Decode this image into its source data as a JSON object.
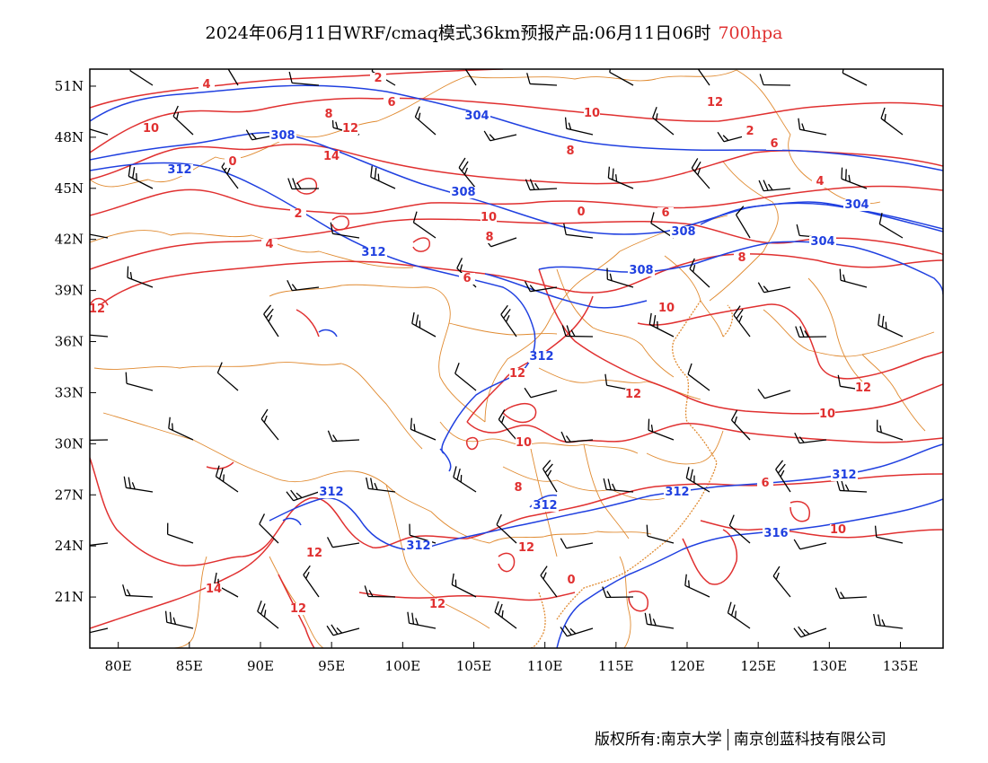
{
  "title": {
    "main": "2024年06月11日WRF/cmaq模式36km预报产品:06月11日06时",
    "level": "700hpa",
    "level_color": "#e03030"
  },
  "axes": {
    "lon_ticks": [
      "80E",
      "85E",
      "90E",
      "95E",
      "100E",
      "105E",
      "110E",
      "115E",
      "120E",
      "125E",
      "130E",
      "135E"
    ],
    "lat_ticks": [
      "51N",
      "48N",
      "45N",
      "42N",
      "39N",
      "36N",
      "33N",
      "30N",
      "27N",
      "24N",
      "21N"
    ],
    "lon_values": [
      80,
      85,
      90,
      95,
      100,
      105,
      110,
      115,
      120,
      125,
      130,
      135
    ],
    "lat_values": [
      51,
      48,
      45,
      42,
      39,
      36,
      33,
      30,
      27,
      24,
      21
    ],
    "lon_range": [
      78,
      138
    ],
    "lat_range": [
      18,
      52
    ]
  },
  "colors": {
    "temperature": "#e03030",
    "geopotential": "#2040e0",
    "boundary": "#e08a30",
    "wind": "#000000"
  },
  "temperature_labels": [
    "2",
    "4",
    "6",
    "8",
    "10",
    "12",
    "14",
    "0",
    "2",
    "4",
    "6",
    "8",
    "10",
    "12",
    "10",
    "8",
    "6",
    "2",
    "4",
    "0",
    "6",
    "8",
    "10",
    "12",
    "12",
    "10",
    "12",
    "10",
    "8",
    "6",
    "10",
    "12",
    "14",
    "12",
    "12",
    "0",
    "12",
    "12"
  ],
  "geopotential_labels": [
    "304",
    "308",
    "312",
    "308",
    "304",
    "308",
    "304",
    "312",
    "312",
    "308",
    "312",
    "312",
    "312",
    "316",
    "312",
    "312"
  ],
  "copyright": {
    "left": "版权所有:南京大学",
    "right": "南京创蓝科技有限公司"
  }
}
